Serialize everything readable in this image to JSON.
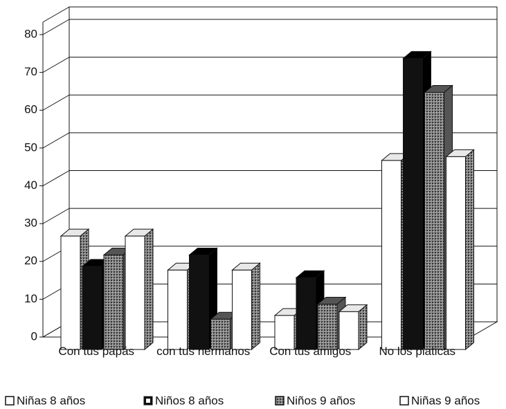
{
  "chart_data": {
    "type": "bar3d",
    "categories": [
      "Con tus papás",
      "con tus hermanos",
      "Con tus amigos",
      "No los platicas"
    ],
    "series": [
      {
        "name": "Niñas 8 años",
        "color": "#ffffff",
        "values": [
          30,
          21,
          9,
          50
        ]
      },
      {
        "name": "Niños 8 años",
        "color": "#111111",
        "values": [
          22,
          25,
          19,
          77
        ]
      },
      {
        "name": "Niños 9 años",
        "color": "#7a7a7a",
        "values": [
          25,
          8,
          12,
          68
        ]
      },
      {
        "name": "Niñas 9 años",
        "color": "#ffffff",
        "values": [
          30,
          21,
          10,
          51
        ]
      }
    ],
    "ylim": [
      0,
      80
    ],
    "yticks": [
      0,
      10,
      20,
      30,
      40,
      50,
      60,
      70,
      80
    ],
    "grid": true,
    "legend": "bottom"
  }
}
